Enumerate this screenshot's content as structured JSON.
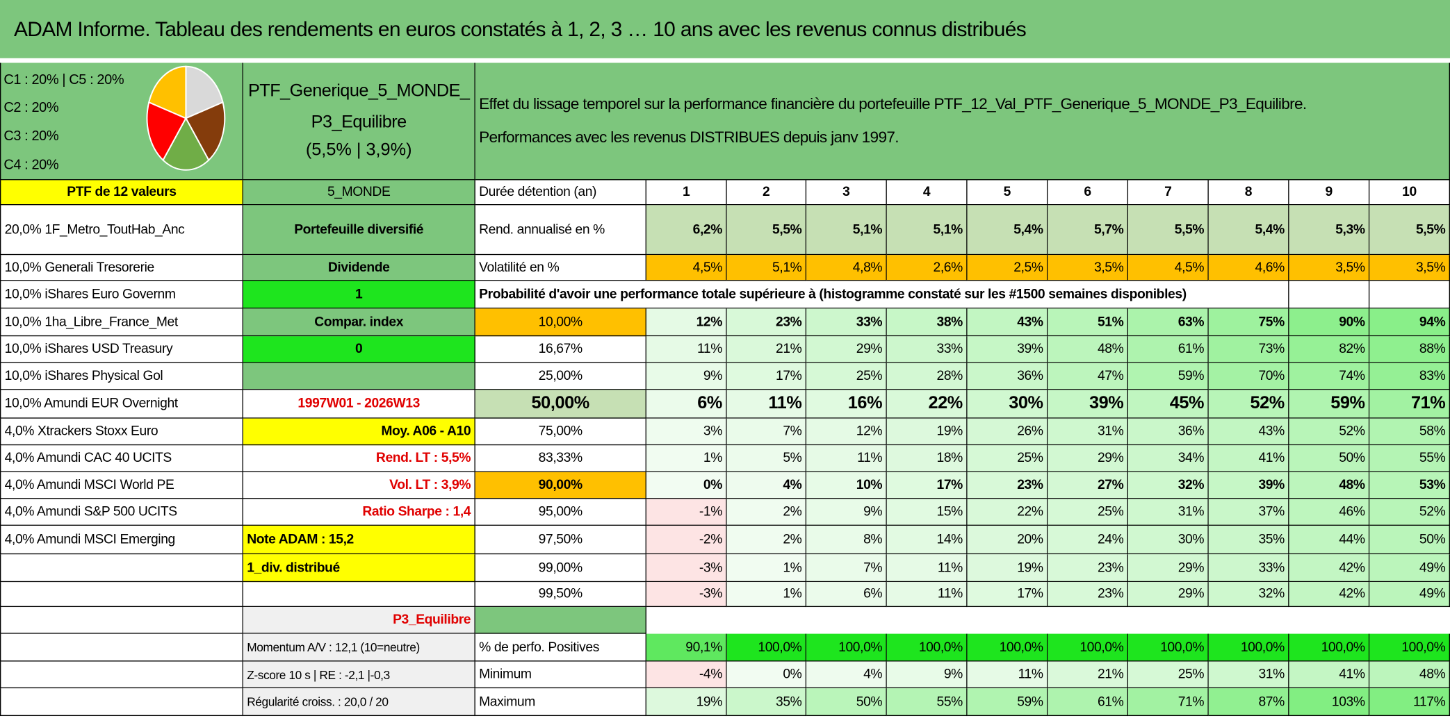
{
  "header": {
    "title": "ADAM Informe. Tableau des rendements en euros constatés à 1, 2, 3 … 10 ans avec les revenus connus distribués"
  },
  "legend": [
    "C1 : 20% | C5 : 20%",
    "C2 : 20%",
    "C3 : 20%",
    "C4 : 20%"
  ],
  "pie": {
    "values": [
      20,
      20,
      20,
      20,
      20
    ],
    "colors": [
      "#d9d9d9",
      "#843c0c",
      "#70ad47",
      "#ff0000",
      "#ffc000"
    ]
  },
  "portfolio": {
    "name": "PTF_Generique_5_MONDE_P3_Equilibre",
    "stats": "(5,5% | 3,9%)"
  },
  "description": [
    "Effet du lissage temporel sur la performance financière du portefeuille PTF_12_Val_PTF_Generique_5_MONDE_P3_Equilibre.",
    "Performances avec les revenus DISTRIBUES depuis janv 1997."
  ],
  "rows": [
    [
      "PTF de 12 valeurs",
      "5_MONDE",
      "Durée détention (an)",
      "1",
      "2",
      "3",
      "4",
      "5",
      "6",
      "7",
      "8",
      "9",
      "10"
    ],
    [
      "20,0% 1F_Metro_ToutHab_Anc",
      "Portefeuille diversifié",
      "Rend. annualisé en %",
      "6,2%",
      "5,5%",
      "5,1%",
      "5,1%",
      "5,4%",
      "5,7%",
      "5,5%",
      "5,4%",
      "5,3%",
      "5,5%"
    ],
    [
      "10,0% Generali Tresorerie",
      "Dividende",
      "Volatilité en %",
      "4,5%",
      "5,1%",
      "4,8%",
      "2,6%",
      "2,5%",
      "3,5%",
      "4,5%",
      "4,6%",
      "3,5%",
      "3,5%"
    ],
    [
      "10,0% iShares Euro Governm",
      "1",
      "Probabilité d'avoir une performance totale supérieure à (histogramme constaté sur les #1500 semaines disponibles)",
      null,
      null,
      null,
      null,
      null,
      null,
      null,
      null,
      null,
      null
    ],
    [
      "10,0% 1ha_Libre_France_Met",
      "Compar. index",
      "10,00%",
      "12%",
      "23%",
      "33%",
      "38%",
      "43%",
      "51%",
      "63%",
      "75%",
      "90%",
      "94%"
    ],
    [
      "10,0% iShares USD Treasury",
      "0",
      "16,67%",
      "11%",
      "21%",
      "29%",
      "33%",
      "39%",
      "48%",
      "61%",
      "73%",
      "82%",
      "88%"
    ],
    [
      "10,0% iShares Physical Gol",
      null,
      "25,00%",
      "9%",
      "17%",
      "25%",
      "28%",
      "36%",
      "47%",
      "59%",
      "70%",
      "74%",
      "83%"
    ],
    [
      "10,0% Amundi EUR Overnight",
      "1997W01 - 2026W13",
      "50,00%",
      "6%",
      "11%",
      "16%",
      "22%",
      "30%",
      "39%",
      "45%",
      "52%",
      "59%",
      "71%"
    ],
    [
      "4,0% Xtrackers Stoxx Euro",
      "Moy. A06 - A10",
      "75,00%",
      "3%",
      "7%",
      "12%",
      "19%",
      "26%",
      "31%",
      "36%",
      "43%",
      "52%",
      "58%"
    ],
    [
      "4,0% Amundi CAC 40 UCITS",
      "Rend. LT : 5,5%",
      "83,33%",
      "1%",
      "5%",
      "11%",
      "18%",
      "25%",
      "29%",
      "34%",
      "41%",
      "50%",
      "55%"
    ],
    [
      "4,0% Amundi MSCI World PE",
      "Vol. LT : 3,9%",
      "90,00%",
      "0%",
      "4%",
      "10%",
      "17%",
      "23%",
      "27%",
      "32%",
      "39%",
      "48%",
      "53%"
    ],
    [
      "4,0% Amundi S&P 500 UCITS",
      "Ratio Sharpe : 1,4",
      "95,00%",
      "-1%",
      "2%",
      "9%",
      "15%",
      "22%",
      "25%",
      "31%",
      "37%",
      "46%",
      "52%"
    ],
    [
      "4,0% Amundi MSCI Emerging",
      "Note ADAM : 15,2",
      "97,50%",
      "-2%",
      "2%",
      "8%",
      "14%",
      "20%",
      "24%",
      "30%",
      "35%",
      "44%",
      "50%"
    ],
    [
      null,
      "1_div. distribué",
      "99,00%",
      "-3%",
      "1%",
      "7%",
      "11%",
      "19%",
      "23%",
      "29%",
      "33%",
      "42%",
      "49%"
    ],
    [
      null,
      null,
      "99,50%",
      "-3%",
      "1%",
      "6%",
      "11%",
      "17%",
      "23%",
      "29%",
      "32%",
      "42%",
      "49%"
    ],
    [
      null,
      "P3_Equilibre",
      null,
      null,
      null,
      null,
      null,
      null,
      null,
      null,
      null,
      null,
      null
    ],
    [
      null,
      "Momentum A/V : 12,1 (10=neutre)",
      "% de perfo. Positives",
      "90,1%",
      "100,0%",
      "100,0%",
      "100,0%",
      "100,0%",
      "100,0%",
      "100,0%",
      "100,0%",
      "100,0%",
      "100,0%"
    ],
    [
      null,
      "Z-score 10 s | RE : -2,1 |-0,3",
      "Minimum",
      "-4%",
      "0%",
      "4%",
      "9%",
      "11%",
      "21%",
      "25%",
      "31%",
      "41%",
      "48%"
    ],
    [
      null,
      "Régularité croiss. : 20,0 / 20",
      "Maximum",
      "19%",
      "35%",
      "50%",
      "55%",
      "59%",
      "61%",
      "71%",
      "87%",
      "103%",
      "117%"
    ]
  ]
}
